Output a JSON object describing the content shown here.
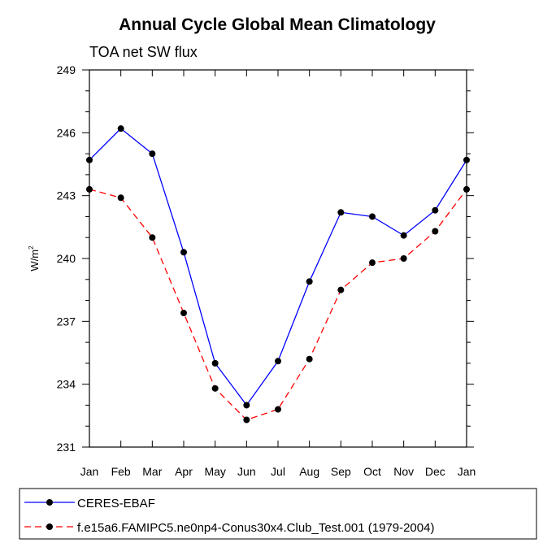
{
  "chart_data": {
    "type": "line",
    "title": "Annual Cycle Global Mean Climatology",
    "subtitle": "TOA net SW flux",
    "ylabel": "W/m",
    "ylabel_sup": "2",
    "xlabel": "",
    "categories": [
      "Jan",
      "Feb",
      "Mar",
      "Apr",
      "May",
      "Jun",
      "Jul",
      "Aug",
      "Sep",
      "Oct",
      "Nov",
      "Dec",
      "Jan"
    ],
    "ylim": [
      231,
      249
    ],
    "yticks": [
      231,
      234,
      237,
      240,
      243,
      246,
      249
    ],
    "ytick_labels": [
      "231",
      "234",
      "237",
      "240",
      "243",
      "246",
      "249"
    ],
    "series": [
      {
        "name": "CERES-EBAF",
        "color": "#0000ff",
        "style": "solid",
        "values": [
          244.7,
          246.2,
          245.0,
          240.3,
          235.0,
          233.0,
          235.1,
          238.9,
          242.2,
          242.0,
          241.1,
          242.3,
          244.7
        ]
      },
      {
        "name": "f.e15a6.FAMIPC5.ne0np4-Conus30x4.Club_Test.001 (1979-2004)",
        "color": "#ff0000",
        "style": "dashed",
        "values": [
          243.3,
          242.9,
          241.0,
          237.4,
          233.8,
          232.3,
          232.8,
          235.2,
          238.5,
          239.8,
          240.0,
          241.3,
          243.3
        ]
      }
    ],
    "legend_position": "bottom"
  }
}
